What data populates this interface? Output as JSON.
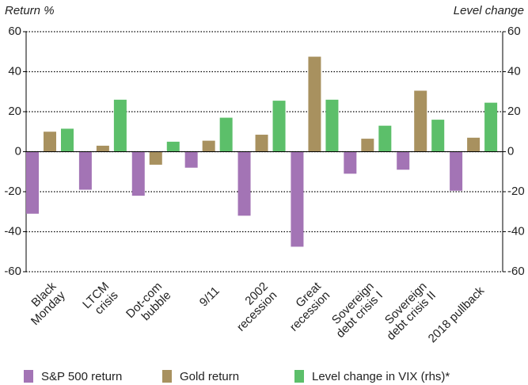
{
  "chart_data": {
    "type": "bar",
    "ylabel": "Return %",
    "y2label": "Level change",
    "categories": [
      "Black\nMonday",
      "LTCM\ncrisis",
      "Dot-com\nbubble",
      "9/11",
      "2002\nrecession",
      "Great\nrecession",
      "Sovereign\ndebt crisis I",
      "Sovereign\ndebt crisis II",
      "2018 pullback"
    ],
    "series": [
      {
        "name": "S&P 500 return",
        "color": "#a374b5",
        "values": [
          -31,
          -19,
          -22,
          -8,
          -32,
          -47.5,
          -11,
          -9,
          -19.5
        ]
      },
      {
        "name": "Gold return",
        "color": "#a8915f",
        "values": [
          10,
          3,
          -6.5,
          5.5,
          8.5,
          47.5,
          6.5,
          30.5,
          7
        ]
      },
      {
        "name": "Level change in VIX (rhs)*",
        "color": "#5cbf6a",
        "axis": "y2",
        "values": [
          11.5,
          26,
          5,
          17,
          25.5,
          26,
          13,
          16,
          24.5
        ]
      }
    ],
    "ylim": [
      -60,
      60
    ],
    "yticks": [
      -60,
      -40,
      -20,
      0,
      20,
      40,
      60
    ],
    "y2lim": [
      -60,
      60
    ],
    "y2ticks": [
      -60,
      -40,
      -20,
      0,
      20,
      40,
      60
    ],
    "grid": true
  }
}
